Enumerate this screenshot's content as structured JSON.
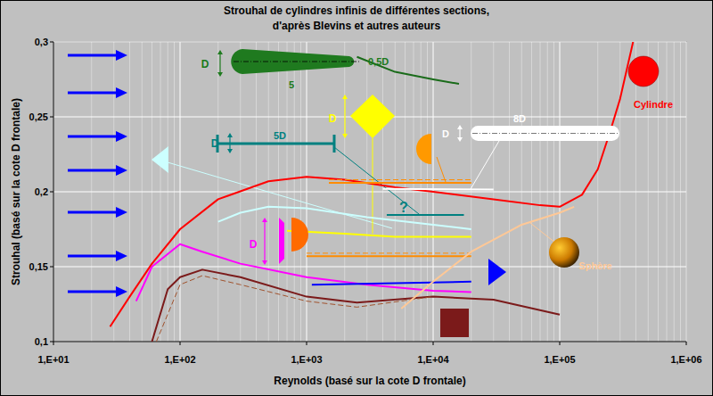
{
  "chart_data": {
    "type": "line",
    "title": "Strouhal de cylindres infinis de différentes sections,",
    "subtitle": "d'après Blevins et autres auteurs",
    "x_label": "Reynolds (basé sur la cote D frontale)",
    "y_label": "Strouhal (basé sur la cote D frontale)",
    "log": "x",
    "grid": true,
    "xlim": [
      10,
      1000000
    ],
    "ylim": [
      0.1,
      0.3
    ],
    "xticks": [
      {
        "value": 10,
        "label": "1,E+01"
      },
      {
        "value": 100,
        "label": "1,E+02"
      },
      {
        "value": 1000,
        "label": "1,E+03"
      },
      {
        "value": 10000,
        "label": "1,E+04"
      },
      {
        "value": 100000,
        "label": "1,E+05"
      },
      {
        "value": 1000000,
        "label": "1,E+06"
      }
    ],
    "yticks": [
      {
        "value": 0.1,
        "label": "0,1"
      },
      {
        "value": 0.15,
        "label": "0,15"
      },
      {
        "value": 0.2,
        "label": "0,2"
      },
      {
        "value": 0.25,
        "label": "0,25"
      },
      {
        "value": 0.3,
        "label": "0,3"
      }
    ],
    "series": [
      {
        "color": "#ff0000",
        "line_style": "solid",
        "x": [
          28,
          40,
          60,
          100,
          200,
          500,
          1000,
          2000,
          5000,
          10000,
          30000,
          70000,
          100000,
          150000,
          200000,
          250000,
          300000,
          380000
        ],
        "values": [
          0.11,
          0.13,
          0.152,
          0.175,
          0.195,
          0.207,
          0.21,
          0.208,
          0.203,
          0.2,
          0.195,
          0.191,
          0.19,
          0.198,
          0.215,
          0.24,
          0.262,
          0.3
        ]
      },
      {
        "color": "#1a6b1a",
        "line_style": "solid",
        "x": [
          2500,
          5000,
          10000,
          16000
        ],
        "values": [
          0.29,
          0.28,
          0.275,
          0.272
        ]
      },
      {
        "color": "#ccffff",
        "line_style": "solid",
        "x": [
          200,
          300,
          500,
          1000,
          3000,
          10000,
          20000
        ],
        "values": [
          0.18,
          0.186,
          0.19,
          0.189,
          0.183,
          0.178,
          0.175
        ]
      },
      {
        "color": "#ffff00",
        "line_style": "solid",
        "x": [
          700,
          2000,
          5000,
          20000
        ],
        "values": [
          0.174,
          0.172,
          0.17,
          0.17
        ]
      },
      {
        "color": "#ff8c00",
        "line_style": "solid",
        "x": [
          1500,
          20000
        ],
        "values": [
          0.206,
          0.206
        ]
      },
      {
        "color": "#ff8c00",
        "line_style": "dashed",
        "x": [
          1500,
          20000
        ],
        "values": [
          0.208,
          0.208
        ]
      },
      {
        "color": "#ff8c00",
        "line_style": "solid",
        "x": [
          1000,
          20000
        ],
        "values": [
          0.157,
          0.157
        ]
      },
      {
        "color": "#ff8c00",
        "line_style": "dashed",
        "x": [
          1000,
          20000
        ],
        "values": [
          0.159,
          0.159
        ]
      },
      {
        "color": "#008080",
        "line_style": "solid",
        "x": [
          4300,
          17500
        ],
        "values": [
          0.1845,
          0.1845
        ]
      },
      {
        "color": "#ffffff",
        "line_style": "solid",
        "x": [
          4000,
          30000
        ],
        "values": [
          0.202,
          0.2015
        ]
      },
      {
        "color": "#ff00ff",
        "line_style": "solid",
        "x": [
          45,
          60,
          100,
          150,
          300,
          1000,
          3000,
          10000,
          20000
        ],
        "values": [
          0.127,
          0.15,
          0.165,
          0.16,
          0.152,
          0.143,
          0.138,
          0.134,
          0.133
        ]
      },
      {
        "color": "#0000ff",
        "line_style": "solid",
        "x": [
          1100,
          20000
        ],
        "values": [
          0.138,
          0.14
        ]
      },
      {
        "color": "#7b1a1a",
        "line_style": "solid",
        "x": [
          60,
          80,
          100,
          150,
          300,
          1000,
          2500,
          10000,
          30000,
          100000
        ],
        "values": [
          0.1,
          0.135,
          0.143,
          0.148,
          0.143,
          0.13,
          0.126,
          0.13,
          0.128,
          0.118
        ]
      },
      {
        "color": "#a0522d",
        "line_style": "dashed",
        "x": [
          65,
          100,
          150,
          300,
          1000,
          2500,
          10000
        ],
        "values": [
          0.1,
          0.138,
          0.144,
          0.138,
          0.127,
          0.123,
          0.13
        ]
      },
      {
        "color": "#ffc896",
        "line_style": "solid",
        "x": [
          5600,
          10000,
          20000,
          50000,
          100000,
          130000
        ],
        "values": [
          0.122,
          0.14,
          0.16,
          0.178,
          0.186,
          0.19
        ]
      }
    ],
    "annotations": [
      {
        "text": "D",
        "color": "#1a7a1a"
      },
      {
        "text": "0,5D",
        "color": "#1a7a1a"
      },
      {
        "text": "5",
        "color": "#1a7a1a"
      },
      {
        "text": "D",
        "color": "#008080"
      },
      {
        "text": "5D",
        "color": "#008080"
      },
      {
        "text": "D",
        "color": "#ffff00"
      },
      {
        "text": "D",
        "color": "#ffffff"
      },
      {
        "text": "8D",
        "color": "#ffffff"
      },
      {
        "text": "?",
        "color": "#008080"
      },
      {
        "text": "D",
        "color": "#ff00ff"
      },
      {
        "text": "Cylindre",
        "color": "#ff0000"
      },
      {
        "text": "Sphère",
        "color": "#ffc896"
      }
    ]
  }
}
